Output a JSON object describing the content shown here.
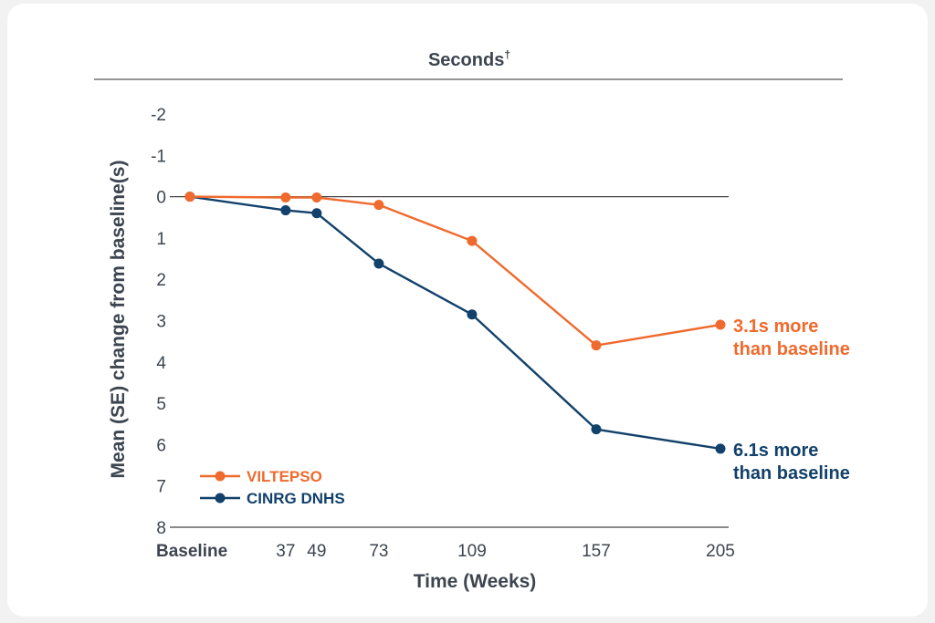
{
  "chart_data": {
    "type": "line",
    "title": "Seconds†",
    "xlabel": "Time (Weeks)",
    "ylabel": "Mean (SE) change from baseline(s)",
    "y_inverted": true,
    "ylim": [
      -2,
      8
    ],
    "yticks": [
      "-2",
      "-1",
      "0",
      "1",
      "2",
      "3",
      "4",
      "5",
      "6",
      "7",
      "8"
    ],
    "categories": [
      "Baseline",
      "37",
      "49",
      "73",
      "109",
      "157",
      "205"
    ],
    "x": [
      0,
      37,
      49,
      73,
      109,
      157,
      205
    ],
    "series": [
      {
        "name": "VILTEPSO",
        "color": "#ef6a2d",
        "values": [
          0,
          0.02,
          0.02,
          0.2,
          1.07,
          3.6,
          3.1
        ],
        "end_label": [
          "3.1s more",
          "than baseline"
        ]
      },
      {
        "name": "CINRG DNHS",
        "color": "#12416b",
        "values": [
          0,
          0.33,
          0.4,
          1.62,
          2.85,
          5.63,
          6.1
        ],
        "end_label": [
          "6.1s more",
          "than baseline"
        ]
      }
    ],
    "legend_position": "bottom-left",
    "grid": false,
    "zero_line": true
  }
}
